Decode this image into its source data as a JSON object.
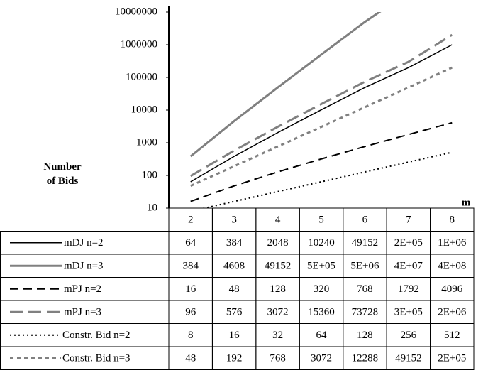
{
  "chart_data": {
    "type": "line",
    "y_label": "Number of Bids",
    "x_label": "m",
    "categories": [
      "2",
      "3",
      "4",
      "5",
      "6",
      "7",
      "8"
    ],
    "ylim": [
      10,
      10000000
    ],
    "yticks": [
      10,
      100,
      1000,
      10000,
      100000,
      1000000,
      10000000
    ],
    "log_scale": true,
    "series": [
      {
        "name": "mDJ n=2",
        "color": "#000000",
        "line_style": "solid",
        "values": [
          64,
          384,
          2048,
          10240,
          49152,
          200000,
          1000000
        ],
        "value_labels": [
          "64",
          "384",
          "2048",
          "10240",
          "49152",
          "2E+05",
          "1E+06"
        ]
      },
      {
        "name": "mDJ n=3",
        "color": "#808080",
        "line_style": "solid",
        "values": [
          384,
          4608,
          49152,
          500000,
          5000000,
          40000000,
          400000000
        ],
        "value_labels": [
          "384",
          "4608",
          "49152",
          "5E+05",
          "5E+06",
          "4E+07",
          "4E+08"
        ]
      },
      {
        "name": "mPJ n=2",
        "color": "#000000",
        "line_style": "dash",
        "values": [
          16,
          48,
          128,
          320,
          768,
          1792,
          4096
        ],
        "value_labels": [
          "16",
          "48",
          "128",
          "320",
          "768",
          "1792",
          "4096"
        ]
      },
      {
        "name": "mPJ n=3",
        "color": "#808080",
        "line_style": "dash",
        "values": [
          96,
          576,
          3072,
          15360,
          73728,
          300000,
          2000000
        ],
        "value_labels": [
          "96",
          "576",
          "3072",
          "15360",
          "73728",
          "3E+05",
          "2E+06"
        ]
      },
      {
        "name": "Constr. Bid n=2",
        "color": "#000000",
        "line_style": "dot",
        "values": [
          8,
          16,
          32,
          64,
          128,
          256,
          512
        ],
        "value_labels": [
          "8",
          "16",
          "32",
          "64",
          "128",
          "256",
          "512"
        ]
      },
      {
        "name": "Constr. Bid n=3",
        "color": "#808080",
        "line_style": "dot",
        "values": [
          48,
          192,
          768,
          3072,
          12288,
          49152,
          200000
        ],
        "value_labels": [
          "48",
          "192",
          "768",
          "3072",
          "12288",
          "49152",
          "2E+05"
        ]
      }
    ]
  }
}
